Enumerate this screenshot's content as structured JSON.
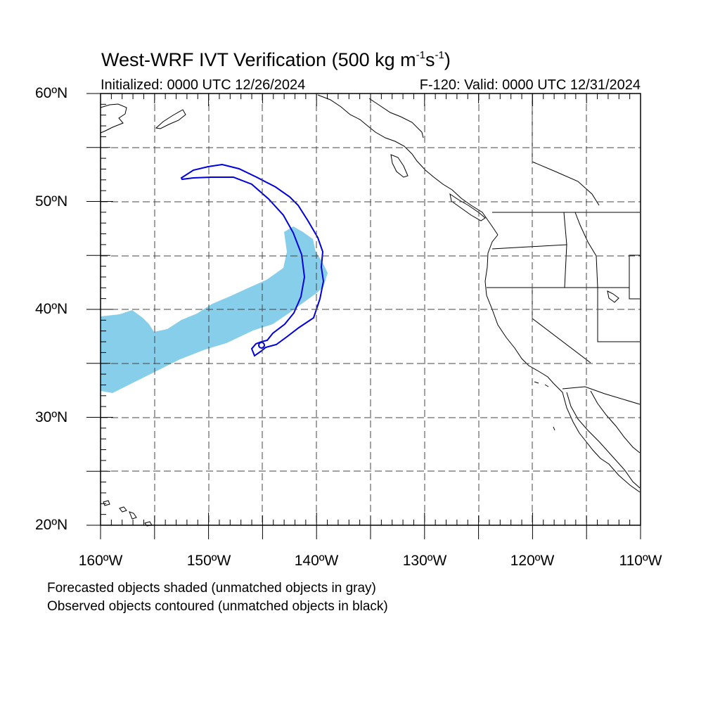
{
  "title": {
    "main": "West-WRF IVT Verification (500 kg m",
    "sup1": "-1",
    "mid": "s",
    "sup2": "-1",
    "end": ")"
  },
  "subtitle_left": "Initialized: 0000 UTC 12/26/2024",
  "subtitle_right": "F-120: Valid: 0000 UTC 12/31/2024",
  "y_tick_labels": [
    "60ºN",
    "50ºN",
    "40ºN",
    "30ºN",
    "20ºN"
  ],
  "x_tick_labels": [
    "160ºW",
    "150ºW",
    "140ºW",
    "130ºW",
    "120ºW",
    "110ºW"
  ],
  "notes": [
    "Forecasted objects shaded (unmatched objects in gray)",
    "Observed objects contoured (unmatched objects in black)"
  ],
  "map_data": {
    "projection": "lat-lon",
    "lon_range": [
      -160,
      -110
    ],
    "lat_range": [
      20,
      60
    ],
    "grid_spacing_deg": 5,
    "grid": true,
    "forecast_object_color": "#87CEEB",
    "observed_contour_color": "#0000DD",
    "coastline_color": "#000000"
  }
}
